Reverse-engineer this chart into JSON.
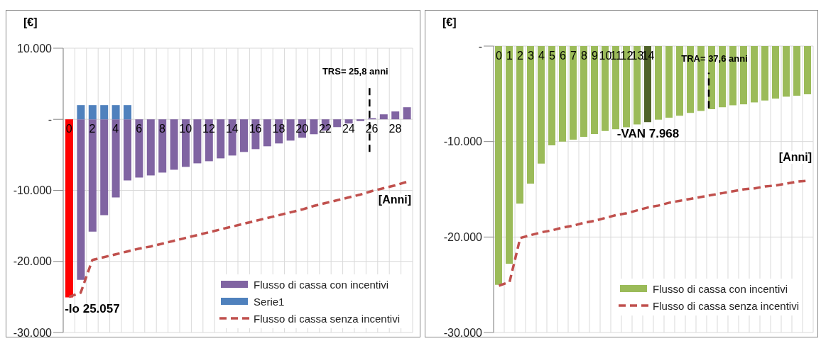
{
  "chart_data": [
    {
      "type": "bar",
      "xlabel": "[Anni]",
      "ylabel": "[€]",
      "x": [
        0,
        1,
        2,
        3,
        4,
        5,
        6,
        7,
        8,
        9,
        10,
        11,
        12,
        13,
        14,
        15,
        16,
        17,
        18,
        19,
        20,
        21,
        22,
        23,
        24,
        25,
        26,
        27,
        28,
        29
      ],
      "xlim": [
        -0.5,
        29.5
      ],
      "xticks": [
        0,
        2,
        4,
        6,
        8,
        10,
        12,
        14,
        16,
        18,
        20,
        22,
        24,
        26,
        28
      ],
      "ylim": [
        -30000,
        10000
      ],
      "yticks": [
        {
          "value": -30000,
          "label": "-30.000"
        },
        {
          "value": -20000,
          "label": "-20.000"
        },
        {
          "value": -10000,
          "label": "-10.000"
        },
        {
          "value": 0,
          "label": "-"
        },
        {
          "value": 10000,
          "label": "10.000"
        }
      ],
      "stacked": true,
      "grid": true,
      "legend": "bottom right",
      "series": [
        {
          "name": "Flusso di cassa con incentivi",
          "color": "#8064a2",
          "colors": [
            "#ff0000",
            "#8064a2",
            "#8064a2",
            "#8064a2",
            "#8064a2",
            "#8064a2",
            "#8064a2",
            "#8064a2",
            "#8064a2",
            "#8064a2",
            "#8064a2",
            "#8064a2",
            "#8064a2",
            "#8064a2",
            "#8064a2",
            "#8064a2",
            "#8064a2",
            "#8064a2",
            "#8064a2",
            "#8064a2",
            "#8064a2",
            "#8064a2",
            "#8064a2",
            "#8064a2",
            "#8064a2",
            "#8064a2",
            "#8064a2",
            "#8064a2",
            "#8064a2",
            "#8064a2"
          ],
          "values": [
            -25057,
            -22600,
            -15800,
            -13500,
            -11000,
            -8600,
            -8200,
            -7900,
            -7500,
            -7100,
            -6700,
            -6200,
            -5900,
            -5500,
            -5100,
            -4600,
            -4200,
            -3800,
            -3400,
            -3000,
            -2600,
            -2100,
            -1600,
            -1100,
            -600,
            -250,
            150,
            700,
            1100,
            1700
          ]
        },
        {
          "name": "Serie1",
          "color": "#4f81bd",
          "values": [
            null,
            2000,
            2000,
            2000,
            2000,
            2000,
            null,
            null,
            null,
            null,
            null,
            null,
            null,
            null,
            null,
            null,
            null,
            null,
            null,
            null,
            null,
            null,
            null,
            null,
            null,
            null,
            null,
            null,
            null,
            null
          ]
        },
        {
          "name": "Flusso di cassa senza incentivi",
          "type": "line",
          "color": "#c0504d",
          "line_style": "dashed",
          "marker": "none",
          "values": [
            -25000,
            -24400,
            -19800,
            -19400,
            -19000,
            -18600,
            -18200,
            -17900,
            -17500,
            -17100,
            -16700,
            -16300,
            -15900,
            -15500,
            -15100,
            -14700,
            -14300,
            -13900,
            -13500,
            -13100,
            -12700,
            -12200,
            -11800,
            -11400,
            -11000,
            -10600,
            -10100,
            -9700,
            -9300,
            -8800
          ]
        }
      ],
      "ref_lines": [
        {
          "axis": "x",
          "value": 25.8,
          "label": "TRS= 25,8 anni",
          "color": "#000000",
          "line_style": "dashed"
        }
      ],
      "annotations": [
        {
          "text": "-Io 25.057",
          "x": 0,
          "y": -25057
        }
      ]
    },
    {
      "type": "bar",
      "xlabel": "[Anni]",
      "ylabel": "[€]",
      "x": [
        0,
        1,
        2,
        3,
        4,
        5,
        6,
        7,
        8,
        9,
        10,
        11,
        12,
        13,
        14,
        15,
        16,
        17,
        18,
        19,
        20,
        21,
        22,
        23,
        24,
        25,
        26,
        27,
        28,
        29
      ],
      "xlim": [
        -0.5,
        29.5
      ],
      "xticks": [
        0,
        1,
        2,
        3,
        4,
        5,
        6,
        7,
        8,
        9,
        10,
        11,
        12,
        13,
        14
      ],
      "ylim": [
        -30000,
        0
      ],
      "yticks": [
        {
          "value": -30000,
          "label": "-30.000"
        },
        {
          "value": -20000,
          "label": "-20.000"
        },
        {
          "value": -10000,
          "label": "-10.000"
        },
        {
          "value": 0,
          "label": "-"
        }
      ],
      "grid": true,
      "legend": "bottom right",
      "series": [
        {
          "name": "Flusso di cassa con incentivi",
          "color": "#9bbb59",
          "colors": [
            "#9bbb59",
            "#9bbb59",
            "#9bbb59",
            "#9bbb59",
            "#9bbb59",
            "#9bbb59",
            "#9bbb59",
            "#9bbb59",
            "#9bbb59",
            "#9bbb59",
            "#9bbb59",
            "#9bbb59",
            "#9bbb59",
            "#9bbb59",
            "#4f6228",
            "#9bbb59",
            "#9bbb59",
            "#9bbb59",
            "#9bbb59",
            "#9bbb59",
            "#9bbb59",
            "#9bbb59",
            "#9bbb59",
            "#9bbb59",
            "#9bbb59",
            "#9bbb59",
            "#9bbb59",
            "#9bbb59",
            "#9bbb59",
            "#9bbb59"
          ],
          "values": [
            -25000,
            -22800,
            -16500,
            -14400,
            -12300,
            -10400,
            -10000,
            -9800,
            -9500,
            -9200,
            -8900,
            -8700,
            -8500,
            -8200,
            -7968,
            -7700,
            -7500,
            -7300,
            -7000,
            -6800,
            -6600,
            -6400,
            -6200,
            -6100,
            -5900,
            -5700,
            -5500,
            -5300,
            -5200,
            -5050
          ]
        },
        {
          "name": "Flusso di cassa senza incentivi",
          "type": "line",
          "color": "#c0504d",
          "line_style": "dashed",
          "marker": "none",
          "values": [
            -25100,
            -24700,
            -20100,
            -19800,
            -19500,
            -19300,
            -19000,
            -18800,
            -18500,
            -18300,
            -18000,
            -17700,
            -17500,
            -17200,
            -16900,
            -16700,
            -16400,
            -16200,
            -16000,
            -15800,
            -15600,
            -15400,
            -15200,
            -15000,
            -14900,
            -14700,
            -14600,
            -14400,
            -14200,
            -14100
          ]
        }
      ],
      "annotations": [
        {
          "text": "TRA= 37,6 anni",
          "x": 19.7,
          "y": -6500
        },
        {
          "text": "-VAN 7.968",
          "x": 14,
          "y": -7968
        }
      ]
    }
  ]
}
